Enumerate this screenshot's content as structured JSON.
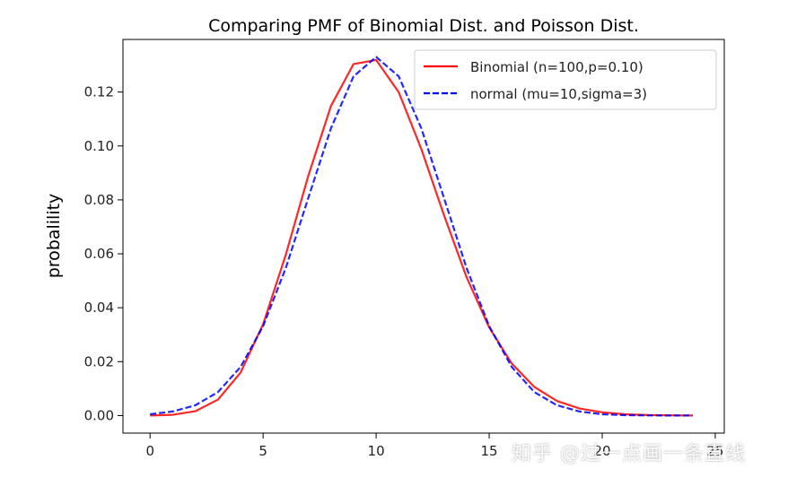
{
  "chart_data": {
    "type": "line",
    "title": "Comparing PMF of Binomial Dist. and Poisson Dist.",
    "xlabel": "",
    "ylabel": "probalility",
    "xlim": [
      -1.2,
      25.4
    ],
    "ylim": [
      -0.0065,
      0.1395
    ],
    "xticks": [
      0,
      5,
      10,
      15,
      20,
      25
    ],
    "xtick_labels": [
      "0",
      "5",
      "10",
      "15",
      "20",
      "25"
    ],
    "yticks": [
      0.0,
      0.02,
      0.04,
      0.06,
      0.08,
      0.1,
      0.12
    ],
    "ytick_labels": [
      "0.00",
      "0.02",
      "0.04",
      "0.06",
      "0.08",
      "0.10",
      "0.12"
    ],
    "grid": false,
    "legend_position": "top-right",
    "x": [
      0,
      1,
      2,
      3,
      4,
      5,
      6,
      7,
      8,
      9,
      10,
      11,
      12,
      13,
      14,
      15,
      16,
      17,
      18,
      19,
      20,
      21,
      22,
      23,
      24
    ],
    "series": [
      {
        "name": "Binomial (n=100,p=0.10)",
        "color": "#ff0000",
        "dash": "solid",
        "values": [
          3e-05,
          0.0003,
          0.0016,
          0.0059,
          0.0159,
          0.0339,
          0.0596,
          0.0889,
          0.1148,
          0.1304,
          0.1319,
          0.1199,
          0.0988,
          0.0743,
          0.0513,
          0.0327,
          0.0193,
          0.0106,
          0.0054,
          0.0026,
          0.0012,
          0.0005,
          0.0002,
          8e-05,
          3e-05
        ]
      },
      {
        "name": "normal (mu=10,sigma=3)",
        "color": "#0000ff",
        "dash": "dashed",
        "values": [
          0.0005,
          0.0015,
          0.0038,
          0.0087,
          0.018,
          0.0332,
          0.0547,
          0.0807,
          0.1065,
          0.1258,
          0.133,
          0.1258,
          0.1065,
          0.0807,
          0.0547,
          0.0332,
          0.018,
          0.0087,
          0.0038,
          0.0015,
          0.0005,
          0.00016,
          5e-05,
          1e-05,
          3e-06
        ]
      }
    ]
  },
  "watermark": "知乎 @过一点画一条直线"
}
